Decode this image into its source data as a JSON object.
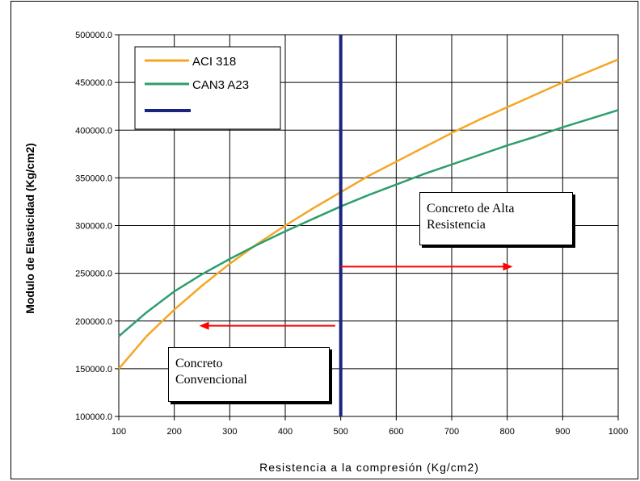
{
  "chart_data": {
    "type": "line",
    "title": "",
    "xlabel": "Resistencia a la compresión (Kg/cm2)",
    "ylabel": "Modulo de Elasticidad (Kg/cm2)",
    "xlim": [
      100,
      1000
    ],
    "ylim": [
      100000,
      500000
    ],
    "x_ticks": [
      "100",
      "200",
      "300",
      "400",
      "500",
      "600",
      "700",
      "800",
      "900",
      "1000"
    ],
    "y_ticks": [
      "100000.0",
      "150000.0",
      "200000.0",
      "250000.0",
      "300000.0",
      "350000.0",
      "400000.0",
      "450000.0",
      "500000.0"
    ],
    "grid": true,
    "legend_position": "top-left",
    "x": [
      100,
      150,
      200,
      250,
      300,
      350,
      400,
      450,
      500,
      550,
      600,
      650,
      700,
      750,
      800,
      850,
      900,
      950,
      1000
    ],
    "series": [
      {
        "name": "ACI 318",
        "color": "#f5a623",
        "values": [
          150000,
          184000,
          212000,
          237000,
          260000,
          281000,
          300000,
          318000,
          335000,
          352000,
          367000,
          382000,
          397000,
          411000,
          424000,
          437000,
          450000,
          462000,
          474000
        ]
      },
      {
        "name": "CAN3 A23",
        "color": "#2e9e6e",
        "values": [
          184000,
          209000,
          231000,
          249000,
          265000,
          280000,
          294000,
          307000,
          320000,
          332000,
          343000,
          354000,
          364000,
          374000,
          384000,
          393000,
          403000,
          412000,
          421000
        ]
      }
    ],
    "vertical_line": {
      "x": 500,
      "color": "#1a237e",
      "legend_name": ""
    },
    "arrows": [
      {
        "from_x": 500,
        "to_x": 810,
        "y": 257000,
        "color": "#ff0000"
      },
      {
        "from_x": 490,
        "to_x": 245,
        "y": 195000,
        "color": "#ff0000"
      }
    ],
    "annotations": {
      "high": [
        "Concreto de Alta",
        "Resistencia"
      ],
      "conventional": [
        "Concreto",
        "Convencional"
      ]
    }
  }
}
